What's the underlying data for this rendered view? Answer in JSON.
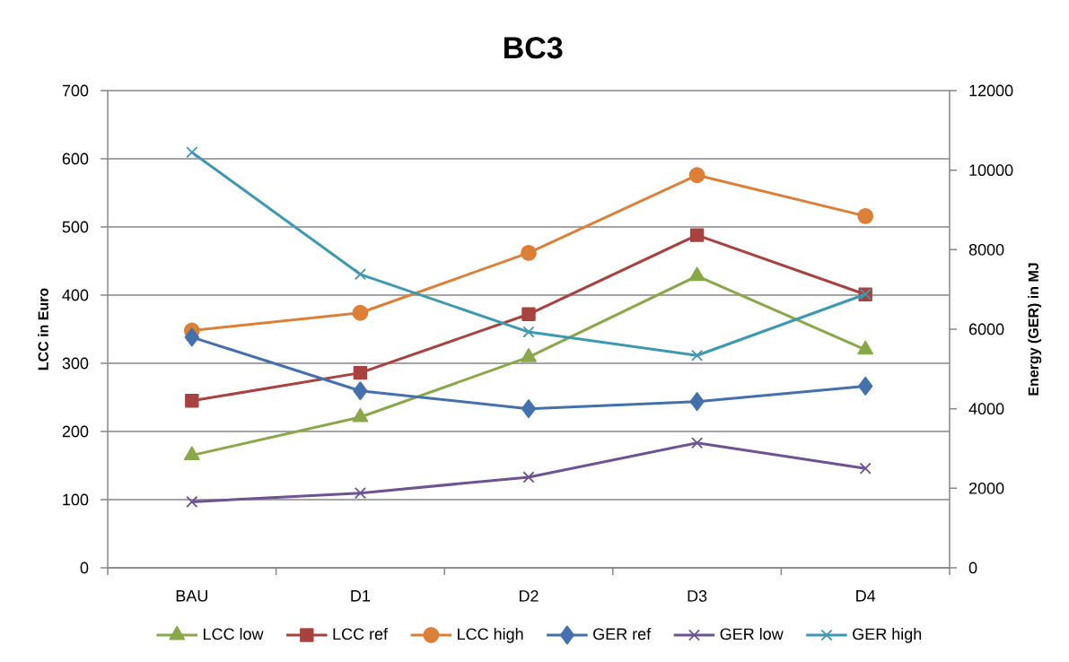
{
  "chart_data": {
    "type": "line",
    "title": "BC3",
    "ylabel": "LCC in Euro",
    "y2label": "Energy (GER) in MJ",
    "categories": [
      "BAU",
      "D1",
      "D2",
      "D3",
      "D4"
    ],
    "ylim": [
      0,
      700
    ],
    "yticks": [
      0,
      100,
      200,
      300,
      400,
      500,
      600,
      700
    ],
    "y2lim": [
      0,
      12000
    ],
    "y2ticks": [
      0,
      2000,
      4000,
      6000,
      8000,
      10000,
      12000
    ],
    "grid": "y",
    "legend": "bottom",
    "line_style": "solid",
    "series": [
      {
        "name": "LCC low",
        "color": "#89a848",
        "marker": "triangle",
        "values": [
          165,
          221,
          309,
          428,
          320
        ]
      },
      {
        "name": "LCC ref",
        "color": "#a8423f",
        "marker": "square",
        "values": [
          245,
          286,
          372,
          488,
          401
        ]
      },
      {
        "name": "LCC high",
        "color": "#dd8037",
        "marker": "circle",
        "values": [
          348,
          374,
          462,
          576,
          516
        ]
      },
      {
        "name": "GER ref",
        "color": "#4471ad",
        "marker": "diamond",
        "axis": "y2",
        "values": [
          5800,
          4450,
          4000,
          4180,
          4570
        ]
      },
      {
        "name": "GER low",
        "color": "#6e5393",
        "marker": "cross",
        "axis": "y2",
        "values": [
          1660,
          1880,
          2280,
          3140,
          2500
        ]
      },
      {
        "name": "GER high",
        "color": "#3d98b2",
        "marker": "cross",
        "axis": "y2",
        "values": [
          10450,
          7380,
          5930,
          5340,
          6880
        ]
      }
    ]
  }
}
